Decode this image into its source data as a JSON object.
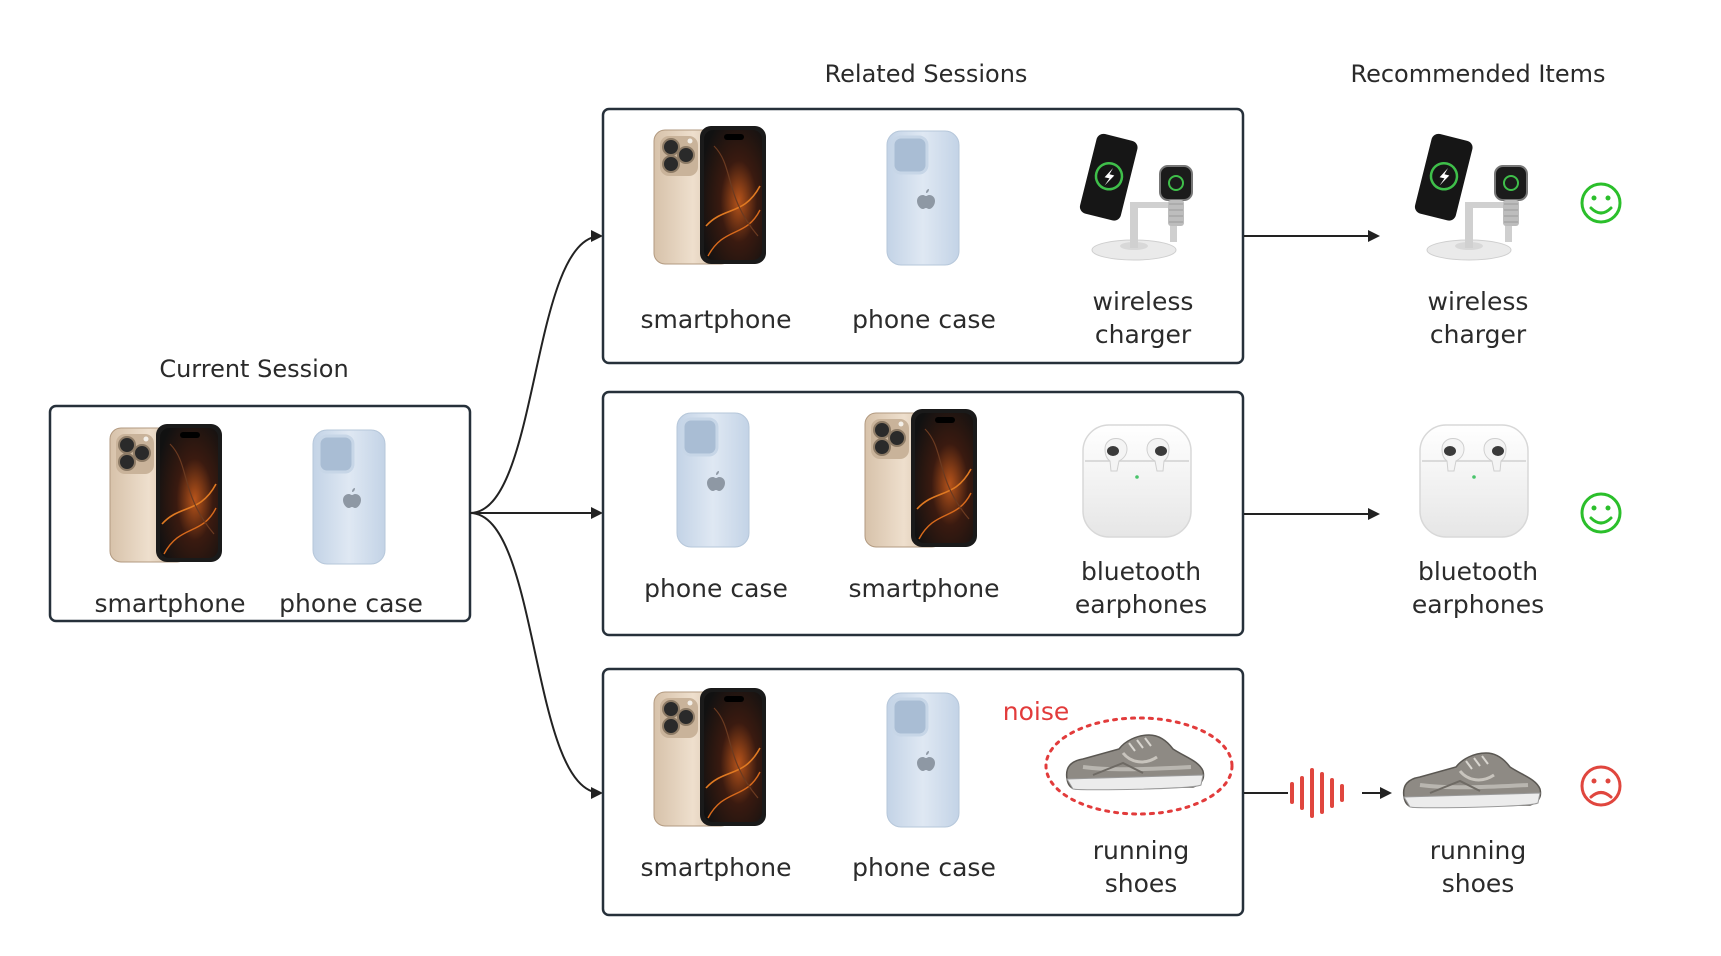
{
  "headings": {
    "current_session": "Current Session",
    "related_sessions": "Related Sessions",
    "recommended_items": "Recommended Items"
  },
  "current_session": {
    "items": [
      {
        "label": "smartphone",
        "icon": "smartphone-icon"
      },
      {
        "label": "phone case",
        "icon": "phone-case-icon"
      }
    ]
  },
  "related_sessions": [
    {
      "items": [
        {
          "label": "smartphone",
          "icon": "smartphone-icon"
        },
        {
          "label": "phone case",
          "icon": "phone-case-icon"
        },
        {
          "label_line1": "wireless",
          "label_line2": "charger",
          "icon": "wireless-charger-icon"
        }
      ]
    },
    {
      "items": [
        {
          "label": "phone case",
          "icon": "phone-case-icon"
        },
        {
          "label": "smartphone",
          "icon": "smartphone-icon"
        },
        {
          "label_line1": "bluetooth",
          "label_line2": "earphones",
          "icon": "earphones-icon"
        }
      ]
    },
    {
      "noise_label": "noise",
      "items": [
        {
          "label": "smartphone",
          "icon": "smartphone-icon"
        },
        {
          "label": "phone case",
          "icon": "phone-case-icon"
        },
        {
          "label_line1": "running",
          "label_line2": "shoes",
          "icon": "running-shoes-icon"
        }
      ]
    }
  ],
  "recommended_items": [
    {
      "label_line1": "wireless",
      "label_line2": "charger",
      "icon": "wireless-charger-icon",
      "feedback": "smiley-icon"
    },
    {
      "label_line1": "bluetooth",
      "label_line2": "earphones",
      "icon": "earphones-icon",
      "feedback": "smiley-icon"
    },
    {
      "label_line1": "running",
      "label_line2": "shoes",
      "icon": "running-shoes-icon",
      "feedback": "frown-icon"
    }
  ],
  "colors": {
    "positive": "#2bbf2b",
    "negative": "#e0463e",
    "noise": "#e23b3b",
    "box_border": "#26303a"
  }
}
